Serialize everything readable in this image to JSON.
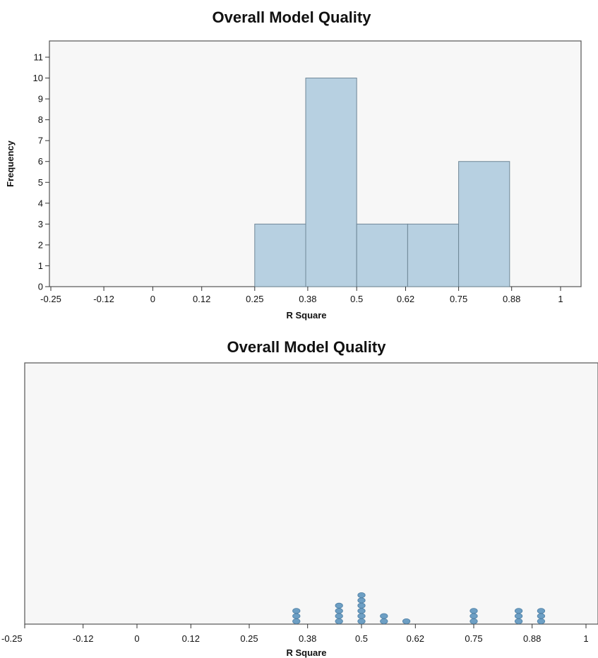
{
  "chart_data": [
    {
      "type": "bar",
      "subtype": "histogram",
      "title": "Overall Model Quality",
      "xlabel": "R Square",
      "ylabel": "Frequency",
      "x_ticks": [
        "-0.25",
        "-0.12",
        "0",
        "0.12",
        "0.25",
        "0.38",
        "0.5",
        "0.62",
        "0.75",
        "0.88",
        "1"
      ],
      "y_ticks": [
        "0",
        "1",
        "2",
        "3",
        "4",
        "5",
        "6",
        "7",
        "8",
        "9",
        "10",
        "11"
      ],
      "xlim": [
        -0.25,
        1
      ],
      "ylim": [
        0,
        11
      ],
      "bins": [
        {
          "start": 0.25,
          "end": 0.375,
          "count": 3
        },
        {
          "start": 0.375,
          "end": 0.5,
          "count": 10
        },
        {
          "start": 0.5,
          "end": 0.625,
          "count": 3
        },
        {
          "start": 0.625,
          "end": 0.75,
          "count": 3
        },
        {
          "start": 0.75,
          "end": 0.875,
          "count": 6
        }
      ],
      "bar_color": "#b7d0e1",
      "bar_edge": "#6f8797",
      "grid": false
    },
    {
      "type": "scatter",
      "subtype": "dot-plot",
      "title": "Overall Model Quality",
      "xlabel": "R Square",
      "x_ticks": [
        "-0.25",
        "-0.12",
        "0",
        "0.12",
        "0.25",
        "0.38",
        "0.5",
        "0.62",
        "0.75",
        "0.88",
        "1"
      ],
      "xlim": [
        -0.25,
        1
      ],
      "points": [
        {
          "x": 0.355,
          "count": 3
        },
        {
          "x": 0.45,
          "count": 4
        },
        {
          "x": 0.5,
          "count": 6
        },
        {
          "x": 0.55,
          "count": 2
        },
        {
          "x": 0.6,
          "count": 1
        },
        {
          "x": 0.75,
          "count": 3
        },
        {
          "x": 0.85,
          "count": 3
        },
        {
          "x": 0.9,
          "count": 3
        }
      ],
      "dot_color": "#6d9fc4",
      "grid": false
    }
  ]
}
